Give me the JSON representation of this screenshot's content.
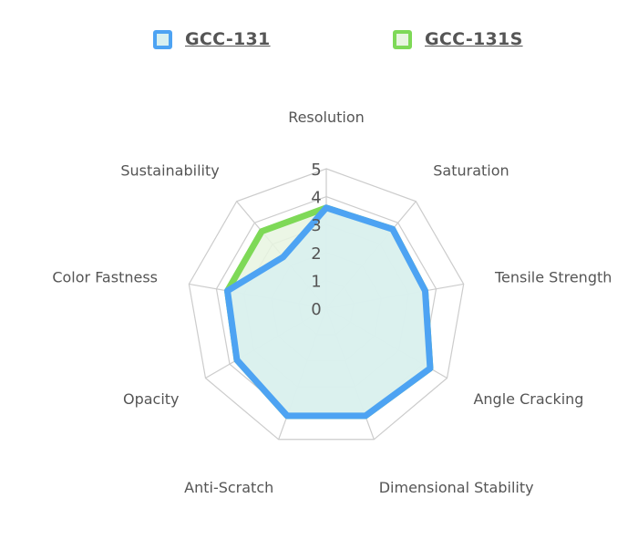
{
  "chart_data": {
    "type": "radar",
    "categories": [
      "Resolution",
      "Saturation",
      "Tensile Strength",
      "Angle Cracking",
      "Dimensional Stability",
      "Anti-Scratch",
      "Opacity",
      "Color Fastness",
      "Sustainability"
    ],
    "rmin": 0,
    "rmax": 5,
    "ticks": [
      "0",
      "1",
      "2",
      "3",
      "4",
      "5"
    ],
    "legend_position": "top",
    "series": [
      {
        "name": "GCC-131S",
        "color": "#7ed957",
        "fill": "#e8f5e0",
        "values": [
          3.6,
          3.7,
          3.6,
          4.3,
          4.1,
          4.1,
          3.7,
          3.6,
          3.6
        ]
      },
      {
        "name": "GCC-131",
        "color": "#4da3f3",
        "fill": "#d8f0f0",
        "values": [
          3.6,
          3.7,
          3.6,
          4.3,
          4.1,
          4.1,
          3.7,
          3.6,
          2.4
        ]
      }
    ]
  },
  "legend": [
    {
      "label": "GCC-131",
      "color": "#4da3f3",
      "fill": "#d8f0f0"
    },
    {
      "label": "GCC-131S",
      "color": "#7ed957",
      "fill": "#e8f5e0"
    }
  ]
}
